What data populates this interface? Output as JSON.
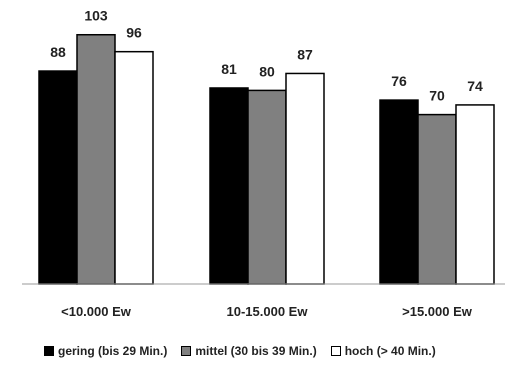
{
  "chart_data": {
    "type": "bar",
    "title": "",
    "xlabel": "",
    "ylabel": "",
    "ylim": [
      0,
      110
    ],
    "grid": false,
    "legend_position": "bottom",
    "categories": [
      "<10.000 Ew",
      "10-15.000 Ew",
      ">15.000 Ew"
    ],
    "series": [
      {
        "name": "gering (bis 29 Min.)",
        "color": "#000000",
        "values": [
          88,
          81,
          76
        ]
      },
      {
        "name": "mittel (30 bis 39 Min.)",
        "color": "#808080",
        "values": [
          103,
          80,
          70
        ]
      },
      {
        "name": "hoch (> 40 Min.)",
        "color": "#ffffff",
        "values": [
          96,
          87,
          74
        ]
      }
    ]
  }
}
